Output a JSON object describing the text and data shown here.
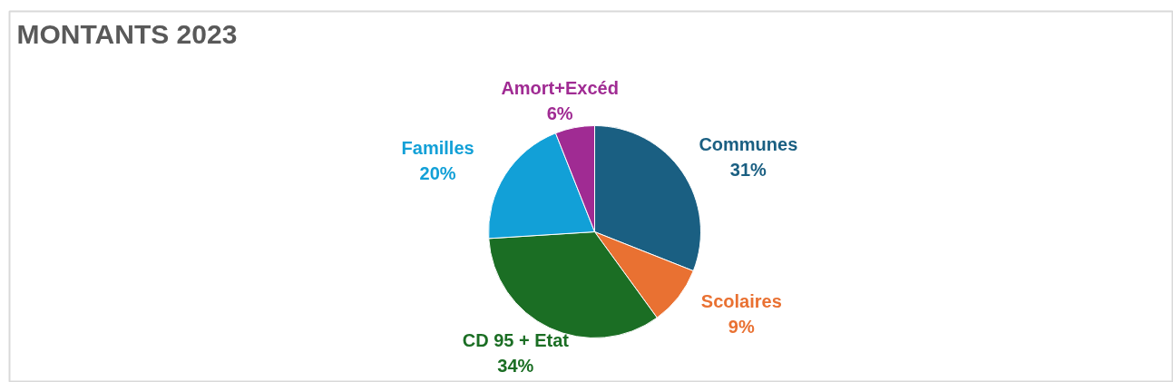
{
  "chart_data": {
    "type": "pie",
    "title": "MONTANTS 2023",
    "categories": [
      "Communes",
      "Scolaires",
      "CD 95 + Etat",
      "Familles",
      "Amort+Excéd"
    ],
    "values": [
      31,
      9,
      34,
      20,
      6
    ],
    "value_labels": [
      "31%",
      "9%",
      "34%",
      "20%",
      "6%"
    ],
    "colors": [
      "#1a5f82",
      "#e97132",
      "#1b6e24",
      "#12a0d7",
      "#a02b93"
    ]
  }
}
